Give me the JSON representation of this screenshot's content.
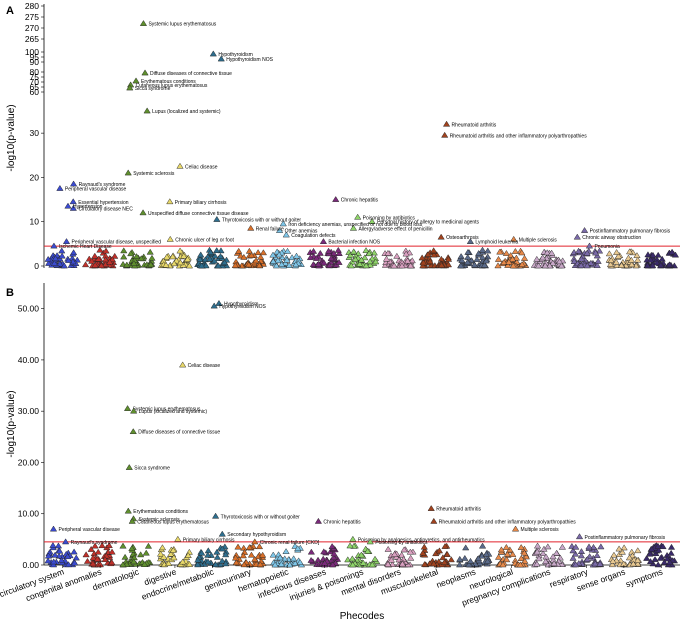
{
  "chart_data": [
    {
      "type": "scatter",
      "panel_label": "A",
      "ylabel": "-log10(p-value)",
      "xlabel": "Phecodes",
      "broken_axis": true,
      "yticks_upper": [
        "280",
        "275",
        "270",
        "265",
        "100",
        "95",
        "90",
        "80",
        "75",
        "70",
        "65",
        "60"
      ],
      "yticks_lower": [
        "0",
        "10",
        "20",
        "30"
      ],
      "ylim_lower": [
        0,
        35
      ],
      "significance_line": 4.5,
      "categories": [
        "circulatory system",
        "congenital anomalies",
        "dermatologic",
        "digestive",
        "endocrine/metabolic",
        "genitourinary",
        "hematopoietic",
        "infectious diseases",
        "injuries & poisonings",
        "mental disorders",
        "musculoskeletal",
        "neoplasms",
        "neurological",
        "pregnancy complications",
        "respiratory",
        "sense organs",
        "symptoms"
      ],
      "labeled_points": [
        {
          "category": "dermatologic",
          "label": "Systemic lupus erythematosus",
          "y": 272
        },
        {
          "category": "dermatologic",
          "label": "Lupus (localized and systemic)",
          "y": 263
        },
        {
          "category": "endocrine/metabolic",
          "label": "Hypothyroidism",
          "y": 98
        },
        {
          "category": "endocrine/metabolic",
          "label": "Hypothyroidism NOS",
          "y": 93
        },
        {
          "category": "dermatologic",
          "label": "Diffuse diseases of connective tissue",
          "y": 79
        },
        {
          "category": "dermatologic",
          "label": "Erythematous conditions",
          "y": 71
        },
        {
          "category": "dermatologic",
          "label": "Cutaneous lupus erythematosus",
          "y": 67
        },
        {
          "category": "dermatologic",
          "label": "Sicca syndrome",
          "y": 64
        },
        {
          "category": "musculoskeletal",
          "label": "Rheumatoid arthritis",
          "y": 32
        },
        {
          "category": "musculoskeletal",
          "label": "Rheumatoid arthritis and other inflammatory polyarthropathies",
          "y": 29.5
        },
        {
          "category": "digestive",
          "label": "Celiac disease",
          "y": 22.5
        },
        {
          "category": "dermatologic",
          "label": "Systemic sclerosis",
          "y": 21
        },
        {
          "category": "circulatory system",
          "label": "Raynaud's syndrome",
          "y": 18.5
        },
        {
          "category": "circulatory system",
          "label": "Peripheral vascular disease",
          "y": 17.5
        },
        {
          "category": "digestive",
          "label": "Primary biliary cirrhosis",
          "y": 14.5
        },
        {
          "category": "infectious diseases",
          "label": "Chronic hepatitis",
          "y": 15
        },
        {
          "category": "circulatory system",
          "label": "Essential hypertension",
          "y": 14.5
        },
        {
          "category": "circulatory system",
          "label": "Hypertension",
          "y": 13.5
        },
        {
          "category": "circulatory system",
          "label": "Circulatory disease NEC",
          "y": 13
        },
        {
          "category": "dermatologic",
          "label": "Unspecified diffuse connective tissue disease",
          "y": 12
        },
        {
          "category": "endocrine/metabolic",
          "label": "Thyrotoxicosis with or without goiter",
          "y": 10.5
        },
        {
          "category": "hematopoietic",
          "label": "Iron deficiency anemias, unspecified or not due to blood loss",
          "y": 9.5
        },
        {
          "category": "injuries & poisonings",
          "label": "Poisoning by antibiotics",
          "y": 11
        },
        {
          "category": "injuries & poisonings",
          "label": "Personal history of allergy to medicinal agents",
          "y": 10
        },
        {
          "category": "injuries & poisonings",
          "label": "Allergy/adverse effect of penicillin",
          "y": 8.5
        },
        {
          "category": "genitourinary",
          "label": "Renal failure",
          "y": 8.5
        },
        {
          "category": "hematopoietic",
          "label": "Other anemias",
          "y": 8
        },
        {
          "category": "hematopoietic",
          "label": "Coagulation defects",
          "y": 7
        },
        {
          "category": "infectious diseases",
          "label": "Bacterial infection NOS",
          "y": 5.5
        },
        {
          "category": "digestive",
          "label": "Chronic ulcer of leg or foot",
          "y": 6
        },
        {
          "category": "circulatory system",
          "label": "Peripheral vascular disease, unspecified",
          "y": 5.5
        },
        {
          "category": "circulatory system",
          "label": "Ischemic Heart Disease",
          "y": 4.5
        },
        {
          "category": "musculoskeletal",
          "label": "Osteoarthrosis",
          "y": 6.5
        },
        {
          "category": "neoplasms",
          "label": "Lymphoid leukemia",
          "y": 5.5
        },
        {
          "category": "neurological",
          "label": "Multiple sclerosis",
          "y": 6
        },
        {
          "category": "respiratory",
          "label": "Postinflammatory pulmonary fibrosis",
          "y": 8
        },
        {
          "category": "respiratory",
          "label": "Chronic airway obstruction",
          "y": 6.5
        },
        {
          "category": "respiratory",
          "label": "Pneumonia",
          "y": 4.5
        }
      ]
    },
    {
      "type": "scatter",
      "panel_label": "B",
      "ylabel": "-log10(p-value)",
      "xlabel": "Phecodes",
      "yticks": [
        "0.00",
        "10.00",
        "20.00",
        "30.00",
        "40.00",
        "50.00"
      ],
      "ylim": [
        0,
        55
      ],
      "significance_line": 4.5,
      "categories": [
        "circulatory system",
        "congenital anomalies",
        "dermatologic",
        "digestive",
        "endocrine/metabolic",
        "genitourinary",
        "hematopoietic",
        "infectious diseases",
        "injuries & poisonings",
        "mental disorders",
        "musculoskeletal",
        "neoplasms",
        "neurological",
        "pregnancy complications",
        "respiratory",
        "sense organs",
        "symptoms"
      ],
      "labeled_points": [
        {
          "category": "endocrine/metabolic",
          "label": "Hypothyroidism",
          "y": 51
        },
        {
          "category": "endocrine/metabolic",
          "label": "Hypothyroidism NOS",
          "y": 50.5
        },
        {
          "category": "digestive",
          "label": "Celiac disease",
          "y": 39
        },
        {
          "category": "dermatologic",
          "label": "Systemic lupus erythematosus",
          "y": 30.5
        },
        {
          "category": "dermatologic",
          "label": "Lupus (localized and systemic)",
          "y": 30
        },
        {
          "category": "dermatologic",
          "label": "Diffuse diseases of connective tissue",
          "y": 26
        },
        {
          "category": "dermatologic",
          "label": "Sicca syndrome",
          "y": 19
        },
        {
          "category": "dermatologic",
          "label": "Erythematous conditions",
          "y": 10.5
        },
        {
          "category": "endocrine/metabolic",
          "label": "Thyrotoxicosis with or without goiter",
          "y": 9.5
        },
        {
          "category": "musculoskeletal",
          "label": "Rheumatoid arthritis",
          "y": 11
        },
        {
          "category": "musculoskeletal",
          "label": "Rheumatoid arthritis and other inflammatory polyarthropathies",
          "y": 8.5
        },
        {
          "category": "infectious diseases",
          "label": "Chronic hepatitis",
          "y": 8.5
        },
        {
          "category": "dermatologic",
          "label": "Systemic sclerosis",
          "y": 9
        },
        {
          "category": "dermatologic",
          "label": "Cutaneous lupus erythematosus",
          "y": 8.5
        },
        {
          "category": "circulatory system",
          "label": "Peripheral vascular disease",
          "y": 7
        },
        {
          "category": "neurological",
          "label": "Multiple sclerosis",
          "y": 7
        },
        {
          "category": "endocrine/metabolic",
          "label": "Secondary hypothyroidism",
          "y": 6
        },
        {
          "category": "respiratory",
          "label": "Postinflammatory pulmonary fibrosis",
          "y": 5.5
        },
        {
          "category": "digestive",
          "label": "Primary biliary cirrhosis",
          "y": 5
        },
        {
          "category": "injuries & poisonings",
          "label": "Poisoning by analgesics, antipyretics, and antirheumatics",
          "y": 5
        },
        {
          "category": "genitourinary",
          "label": "Chronic renal failure [CKD]",
          "y": 4.5
        },
        {
          "category": "circulatory system",
          "label": "Raynaud's syndrome",
          "y": 4.5
        },
        {
          "category": "injuries & poisonings",
          "label": "Poisoning by antibiotics",
          "y": 4.5
        }
      ]
    }
  ],
  "category_colors": [
    "#3b4bd0",
    "#c0302a",
    "#5f8f2e",
    "#e8d86a",
    "#2e6e8e",
    "#d9702a",
    "#7fc6e8",
    "#7a2a7a",
    "#8fd46a",
    "#d9a0c0",
    "#a0421e",
    "#5a6a8a",
    "#e88a4a",
    "#c8a8c8",
    "#7a6aa8",
    "#e8c890",
    "#3a2a6a"
  ],
  "significance_color": "#e0202a"
}
